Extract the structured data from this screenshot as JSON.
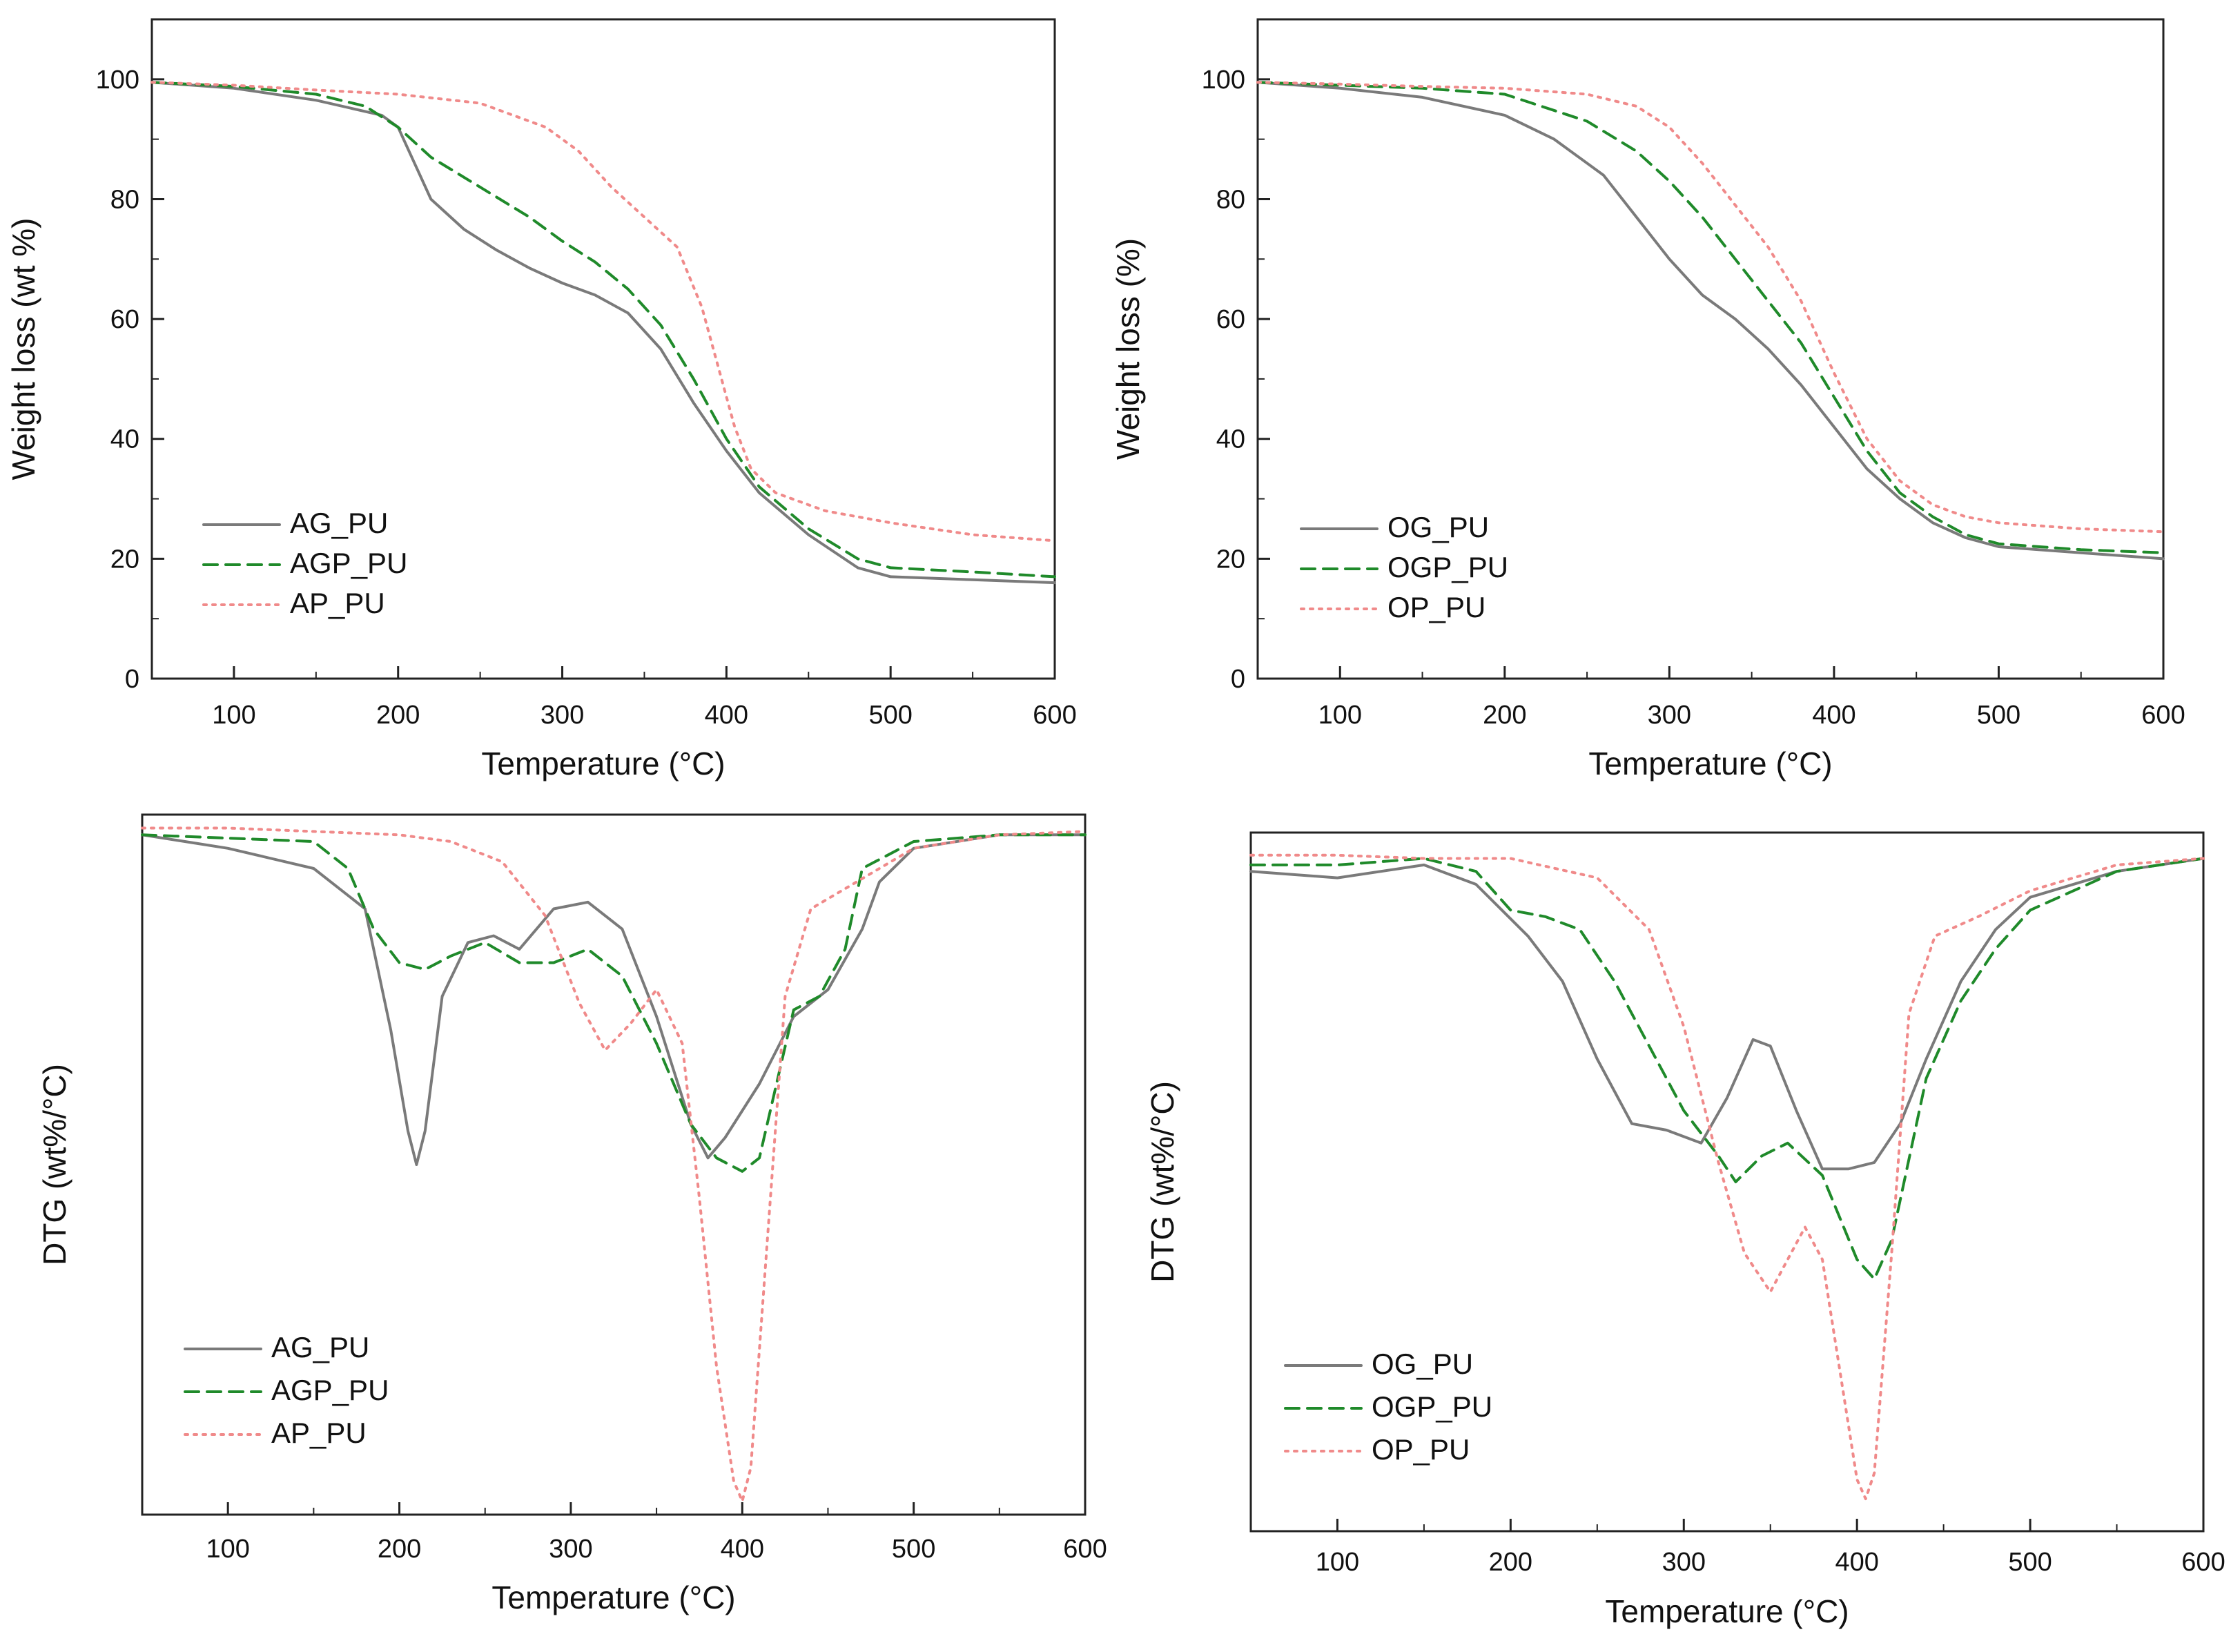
{
  "chart_data": [
    {
      "type": "line",
      "panel": "top-left",
      "title": "",
      "xlabel": "Temperature (°C)",
      "ylabel": "Weight loss (wt %)",
      "xlim": [
        50,
        600
      ],
      "ylim": [
        0,
        110
      ],
      "xticks": [
        100,
        200,
        300,
        400,
        500,
        600
      ],
      "yticks": [
        0,
        20,
        40,
        60,
        80,
        100
      ],
      "show_y_ticklabels": true,
      "grid": false,
      "legend_position": "bottom-left",
      "series": [
        {
          "name": "AG_PU",
          "style": "solid",
          "color": "#7a7a7a",
          "x": [
            50,
            100,
            150,
            190,
            200,
            210,
            220,
            240,
            260,
            280,
            300,
            320,
            340,
            360,
            380,
            400,
            420,
            450,
            480,
            500,
            550,
            600
          ],
          "y": [
            99.5,
            98.5,
            96.5,
            94,
            92,
            86,
            80,
            75,
            71.5,
            68.5,
            66,
            64,
            61,
            55,
            46,
            38,
            31,
            24,
            18.5,
            17,
            16.5,
            16
          ]
        },
        {
          "name": "AGP_PU",
          "style": "dashed",
          "color": "#1f8a2a",
          "x": [
            50,
            100,
            150,
            180,
            200,
            220,
            250,
            280,
            300,
            320,
            340,
            360,
            380,
            400,
            420,
            450,
            480,
            500,
            550,
            600
          ],
          "y": [
            99.5,
            98.8,
            97.5,
            95.5,
            92,
            87,
            82,
            77,
            73,
            69.5,
            65,
            59,
            50,
            40,
            32,
            25,
            20,
            18.5,
            17.8,
            17
          ]
        },
        {
          "name": "AP_PU",
          "style": "dotted",
          "color": "#f08a8a",
          "x": [
            50,
            100,
            150,
            200,
            250,
            290,
            310,
            330,
            350,
            370,
            385,
            395,
            405,
            415,
            430,
            460,
            500,
            550,
            600
          ],
          "y": [
            99.5,
            99,
            98.2,
            97.5,
            96,
            92,
            88,
            82,
            77,
            72,
            62,
            52,
            42,
            35,
            31,
            28,
            26,
            24,
            23
          ]
        }
      ]
    },
    {
      "type": "line",
      "panel": "top-right",
      "title": "",
      "xlabel": "Temperature (°C)",
      "ylabel": "Weight loss (%)",
      "xlim": [
        50,
        600
      ],
      "ylim": [
        0,
        110
      ],
      "xticks": [
        100,
        200,
        300,
        400,
        500,
        600
      ],
      "yticks": [
        0,
        20,
        40,
        60,
        80,
        100
      ],
      "show_y_ticklabels": true,
      "grid": false,
      "legend_position": "bottom-left",
      "series": [
        {
          "name": "OG_PU",
          "style": "solid",
          "color": "#7a7a7a",
          "x": [
            50,
            100,
            150,
            200,
            230,
            260,
            280,
            300,
            320,
            340,
            360,
            380,
            400,
            420,
            440,
            460,
            480,
            500,
            550,
            600
          ],
          "y": [
            99.5,
            98.5,
            97,
            94,
            90,
            84,
            77,
            70,
            64,
            60,
            55,
            49,
            42,
            35,
            30,
            26,
            23.5,
            22,
            21,
            20
          ]
        },
        {
          "name": "OGP_PU",
          "style": "dashed",
          "color": "#1f8a2a",
          "x": [
            50,
            100,
            150,
            200,
            250,
            280,
            300,
            320,
            340,
            360,
            380,
            400,
            420,
            440,
            460,
            480,
            500,
            550,
            600
          ],
          "y": [
            99.5,
            99,
            98.5,
            97.5,
            93,
            88,
            83,
            77,
            70,
            63,
            56,
            47,
            38,
            31,
            27,
            24,
            22.5,
            21.5,
            21
          ]
        },
        {
          "name": "OP_PU",
          "style": "dotted",
          "color": "#f08a8a",
          "x": [
            50,
            100,
            150,
            200,
            250,
            280,
            300,
            320,
            340,
            360,
            380,
            400,
            420,
            440,
            460,
            480,
            500,
            550,
            600
          ],
          "y": [
            99.5,
            99.2,
            98.8,
            98.5,
            97.5,
            95.5,
            92,
            86,
            79,
            72,
            63,
            51,
            40,
            33,
            29,
            27,
            26,
            25,
            24.5
          ]
        }
      ]
    },
    {
      "type": "line",
      "panel": "bottom-left",
      "title": "",
      "xlabel": "Temperature (°C)",
      "ylabel": "DTG (wt%/°C)",
      "xlim": [
        50,
        600
      ],
      "ylim": [
        -1.02,
        0.02
      ],
      "xticks": [
        100,
        200,
        300,
        400,
        500,
        600
      ],
      "yticks": [],
      "show_y_ticklabels": false,
      "grid": false,
      "legend_position": "bottom-left",
      "series": [
        {
          "name": "AG_PU",
          "style": "solid",
          "color": "#7a7a7a",
          "x": [
            50,
            100,
            150,
            180,
            195,
            205,
            210,
            215,
            225,
            240,
            255,
            270,
            290,
            310,
            330,
            350,
            370,
            380,
            390,
            410,
            430,
            450,
            470,
            480,
            500,
            550,
            600
          ],
          "y": [
            -0.01,
            -0.03,
            -0.06,
            -0.12,
            -0.3,
            -0.45,
            -0.5,
            -0.45,
            -0.25,
            -0.17,
            -0.16,
            -0.18,
            -0.12,
            -0.11,
            -0.15,
            -0.28,
            -0.44,
            -0.49,
            -0.46,
            -0.38,
            -0.28,
            -0.24,
            -0.15,
            -0.08,
            -0.03,
            -0.01,
            -0.01
          ]
        },
        {
          "name": "AGP_PU",
          "style": "dashed",
          "color": "#1f8a2a",
          "x": [
            50,
            100,
            150,
            170,
            185,
            200,
            215,
            230,
            250,
            270,
            290,
            310,
            330,
            350,
            370,
            385,
            400,
            410,
            420,
            430,
            445,
            460,
            470,
            500,
            550,
            600
          ],
          "y": [
            -0.01,
            -0.015,
            -0.02,
            -0.06,
            -0.15,
            -0.2,
            -0.21,
            -0.19,
            -0.17,
            -0.2,
            -0.2,
            -0.18,
            -0.22,
            -0.32,
            -0.44,
            -0.49,
            -0.51,
            -0.49,
            -0.38,
            -0.27,
            -0.25,
            -0.18,
            -0.06,
            -0.02,
            -0.01,
            -0.01
          ]
        },
        {
          "name": "AP_PU",
          "style": "dotted",
          "color": "#f08a8a",
          "x": [
            50,
            100,
            150,
            200,
            230,
            260,
            285,
            305,
            320,
            335,
            350,
            365,
            375,
            385,
            395,
            400,
            405,
            415,
            425,
            440,
            460,
            500,
            550,
            600
          ],
          "y": [
            0,
            0,
            -0.005,
            -0.01,
            -0.02,
            -0.05,
            -0.13,
            -0.26,
            -0.33,
            -0.29,
            -0.24,
            -0.32,
            -0.55,
            -0.8,
            -0.97,
            -1.0,
            -0.95,
            -0.6,
            -0.25,
            -0.12,
            -0.09,
            -0.03,
            -0.01,
            -0.005
          ]
        }
      ]
    },
    {
      "type": "line",
      "panel": "bottom-right",
      "title": "",
      "xlabel": "Temperature (°C)",
      "ylabel": "DTG (wt%/°C)",
      "xlim": [
        50,
        600
      ],
      "ylim": [
        -1.05,
        0.03
      ],
      "xticks": [
        100,
        200,
        300,
        400,
        500,
        600
      ],
      "yticks": [],
      "show_y_ticklabels": false,
      "grid": false,
      "legend_position": "bottom-left",
      "series": [
        {
          "name": "OG_PU",
          "style": "solid",
          "color": "#7a7a7a",
          "x": [
            50,
            100,
            150,
            180,
            210,
            230,
            250,
            270,
            290,
            310,
            325,
            340,
            350,
            365,
            380,
            395,
            410,
            425,
            440,
            460,
            480,
            500,
            550,
            600
          ],
          "y": [
            -0.03,
            -0.04,
            -0.02,
            -0.05,
            -0.13,
            -0.2,
            -0.32,
            -0.42,
            -0.43,
            -0.45,
            -0.38,
            -0.29,
            -0.3,
            -0.4,
            -0.49,
            -0.49,
            -0.48,
            -0.42,
            -0.32,
            -0.2,
            -0.12,
            -0.07,
            -0.03,
            -0.01
          ]
        },
        {
          "name": "OGP_PU",
          "style": "dashed",
          "color": "#1f8a2a",
          "x": [
            50,
            100,
            150,
            180,
            200,
            220,
            240,
            260,
            280,
            300,
            320,
            330,
            345,
            360,
            380,
            400,
            410,
            420,
            440,
            460,
            480,
            500,
            550,
            600
          ],
          "y": [
            -0.02,
            -0.02,
            -0.01,
            -0.03,
            -0.09,
            -0.1,
            -0.12,
            -0.2,
            -0.3,
            -0.4,
            -0.47,
            -0.51,
            -0.47,
            -0.45,
            -0.5,
            -0.63,
            -0.66,
            -0.6,
            -0.35,
            -0.23,
            -0.15,
            -0.09,
            -0.03,
            -0.01
          ]
        },
        {
          "name": "OP_PU",
          "style": "dotted",
          "color": "#f08a8a",
          "x": [
            50,
            100,
            150,
            200,
            250,
            280,
            300,
            320,
            335,
            350,
            360,
            370,
            380,
            390,
            400,
            405,
            410,
            420,
            430,
            445,
            470,
            500,
            550,
            600
          ],
          "y": [
            -0.005,
            -0.005,
            -0.01,
            -0.01,
            -0.04,
            -0.12,
            -0.27,
            -0.48,
            -0.62,
            -0.68,
            -0.63,
            -0.58,
            -0.63,
            -0.8,
            -0.97,
            -1.0,
            -0.96,
            -0.62,
            -0.25,
            -0.13,
            -0.1,
            -0.06,
            -0.02,
            -0.01
          ]
        }
      ]
    }
  ]
}
